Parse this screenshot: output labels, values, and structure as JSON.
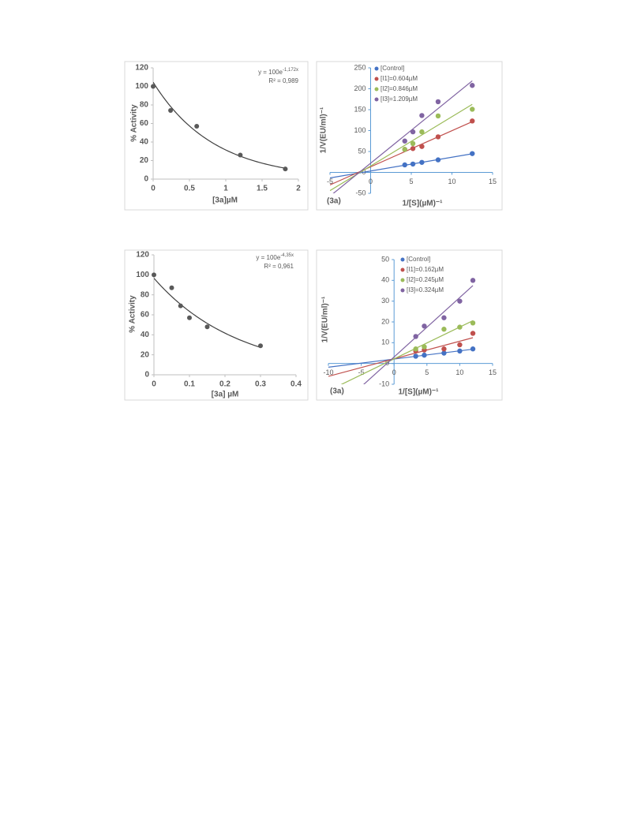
{
  "chart_data": [
    {
      "type": "scatter",
      "trendline": "exponential",
      "color": "#595959",
      "x": [
        0,
        0.24,
        0.6,
        1.2,
        1.82
      ],
      "values": [
        100,
        74,
        57,
        26,
        11
      ],
      "xlim": [
        0,
        2
      ],
      "xticks": [
        0,
        0.5,
        1,
        1.5,
        2
      ],
      "ylim": [
        0,
        120
      ],
      "yticks": [
        0,
        20,
        40,
        60,
        80,
        100,
        120
      ],
      "x_label": "[3a]µM",
      "y_label": "% Activity",
      "equation": {
        "base": "y = 100e",
        "exponent": "-1,172x"
      },
      "r_squared": "R² = 0,989"
    },
    {
      "type": "scatter",
      "trendline": "linear",
      "legend": "upper left",
      "series": [
        {
          "name": "[Control]",
          "color": "#4472c4",
          "x": [
            4.2,
            5.2,
            6.3,
            8.3,
            12.5
          ],
          "values": [
            18,
            20,
            24,
            30,
            45
          ]
        },
        {
          "name": "[I1]=0.604µM",
          "color": "#c0504d",
          "x": [
            4.2,
            5.2,
            6.3,
            8.3,
            12.5
          ],
          "values": [
            55,
            57,
            62,
            85,
            123
          ]
        },
        {
          "name": "[I2]=0.846µM",
          "color": "#9bbb59",
          "x": [
            4.2,
            5.2,
            6.3,
            8.3,
            12.5
          ],
          "values": [
            55,
            69,
            97,
            135,
            151
          ]
        },
        {
          "name": "[I3]=1.209µM",
          "color": "#8064a2",
          "x": [
            4.2,
            5.2,
            6.3,
            8.3,
            12.5
          ],
          "values": [
            75,
            97,
            136,
            169,
            208
          ]
        }
      ],
      "xlim": [
        -5,
        15
      ],
      "xticks": [
        -5,
        0,
        5,
        10,
        15
      ],
      "ylim": [
        -50,
        250
      ],
      "yticks": [
        -50,
        0,
        50,
        100,
        150,
        200,
        250
      ],
      "x_label": "1/[S](µM)⁻¹",
      "y_label": "1/V(EU/ml)⁻¹",
      "annotation": "(3a)"
    },
    {
      "type": "scatter",
      "trendline": "exponential",
      "color": "#595959",
      "x": [
        0,
        0.05,
        0.075,
        0.1,
        0.15,
        0.3
      ],
      "values": [
        100,
        87,
        69,
        57,
        48,
        29
      ],
      "xlim": [
        0,
        0.4
      ],
      "xticks": [
        0,
        0.1,
        0.2,
        0.3,
        0.4
      ],
      "ylim": [
        0,
        120
      ],
      "yticks": [
        0,
        20,
        40,
        60,
        80,
        100,
        120
      ],
      "x_label": "[3a] µM",
      "y_label": "% Activity",
      "equation": {
        "base": "y = 100e",
        "exponent": "-4,35x"
      },
      "r_squared": "R² = 0,961"
    },
    {
      "type": "scatter",
      "trendline": "linear",
      "legend": "upper left",
      "series": [
        {
          "name": "[Control]",
          "color": "#4472c4",
          "x": [
            3.3,
            4.6,
            7.6,
            10,
            12
          ],
          "values": [
            3.5,
            4,
            5,
            6,
            7
          ]
        },
        {
          "name": "[I1]=0.162µM",
          "color": "#c0504d",
          "x": [
            3.3,
            4.6,
            7.6,
            10,
            12
          ],
          "values": [
            6,
            6.5,
            7,
            9,
            14.5
          ]
        },
        {
          "name": "[I2]=0.245µM",
          "color": "#9bbb59",
          "x": [
            3.3,
            4.6,
            7.6,
            10,
            12
          ],
          "values": [
            7,
            8,
            16.5,
            17.5,
            19.5
          ]
        },
        {
          "name": "[I3]=0.324µM",
          "color": "#8064a2",
          "x": [
            3.3,
            4.6,
            7.6,
            10,
            12
          ],
          "values": [
            13,
            18,
            22,
            30,
            40
          ]
        }
      ],
      "xlim": [
        -10,
        15
      ],
      "xticks": [
        -10,
        -5,
        0,
        5,
        10,
        15
      ],
      "ylim": [
        -10,
        50
      ],
      "yticks": [
        -10,
        0,
        10,
        20,
        30,
        40,
        50
      ],
      "x_label": "1/[S](µM)⁻¹",
      "y_label": "1/V(EU/ml)⁻¹",
      "annotation": "(3a)"
    }
  ]
}
